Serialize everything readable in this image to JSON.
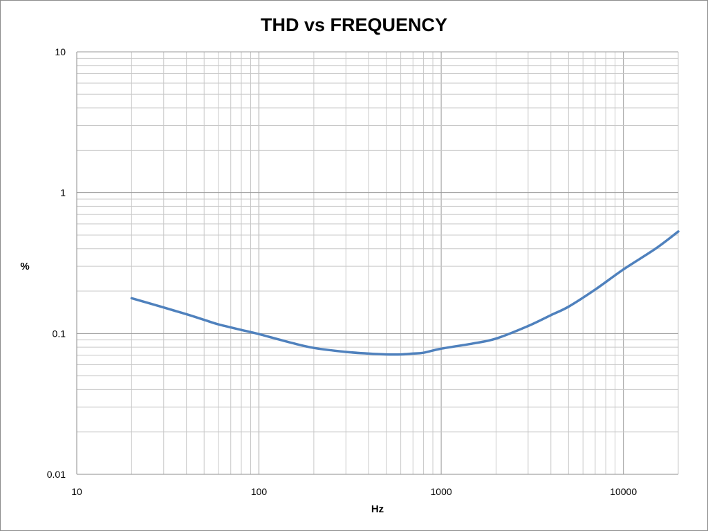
{
  "chart_data": {
    "type": "line",
    "title": "THD vs FREQUENCY",
    "xlabel": "Hz",
    "ylabel": "%",
    "x_scale": "log",
    "y_scale": "log",
    "xlim": [
      10,
      20000
    ],
    "ylim": [
      0.01,
      10
    ],
    "x_tick_labels": [
      "10",
      "100",
      "1000",
      "10000"
    ],
    "y_tick_labels": [
      "10",
      "1",
      "0.1",
      "0.01"
    ],
    "grid": true,
    "legend": "none",
    "series": [
      {
        "color": "#4f81bd",
        "x": [
          20,
          30,
          40,
          50,
          60,
          80,
          100,
          150,
          200,
          300,
          400,
          500,
          600,
          700,
          800,
          1000,
          1500,
          2000,
          3000,
          4000,
          5000,
          7000,
          10000,
          15000,
          20000
        ],
        "y": [
          0.178,
          0.153,
          0.137,
          0.125,
          0.116,
          0.106,
          0.099,
          0.086,
          0.079,
          0.074,
          0.072,
          0.071,
          0.071,
          0.072,
          0.073,
          0.078,
          0.085,
          0.092,
          0.113,
          0.135,
          0.155,
          0.205,
          0.285,
          0.4,
          0.53
        ]
      }
    ]
  }
}
